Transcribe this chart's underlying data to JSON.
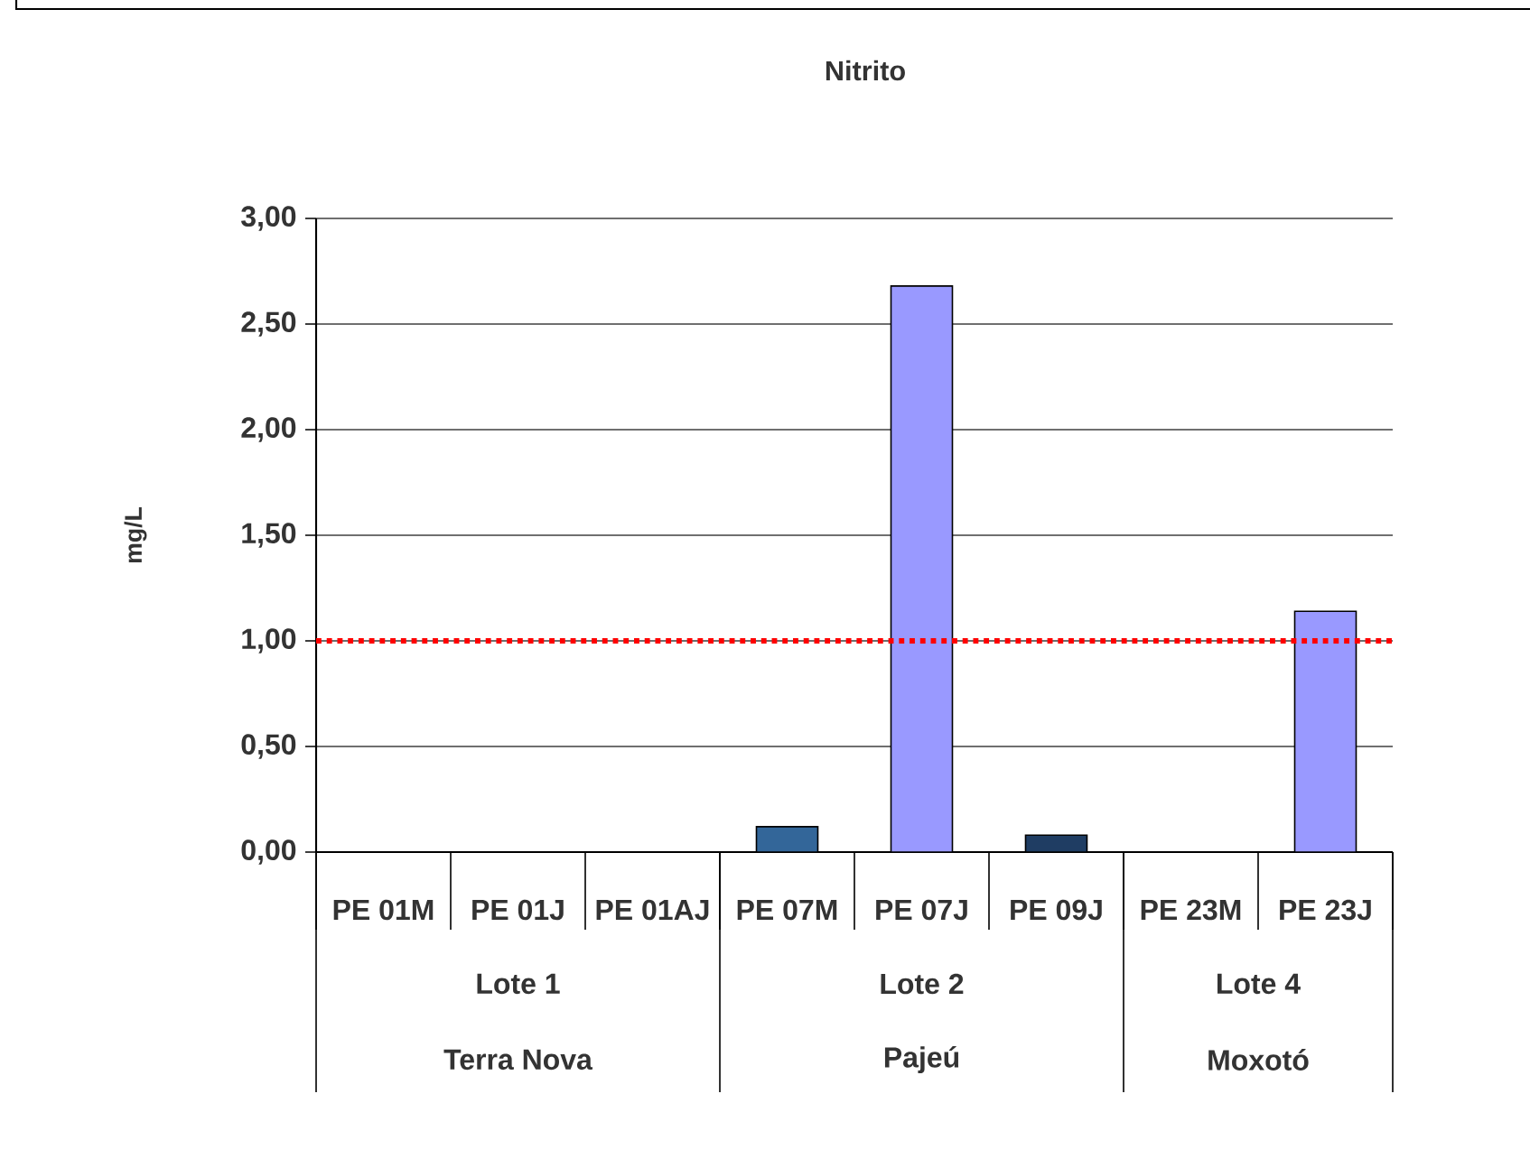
{
  "chart_data": {
    "type": "bar",
    "title": "Nitrito",
    "ylabel": "mg/L",
    "categories": [
      "PE 01M",
      "PE 01J",
      "PE 01AJ",
      "PE 07M",
      "PE 07J",
      "PE 09J",
      "PE 23M",
      "PE 23J"
    ],
    "values": [
      0,
      0,
      0,
      0.12,
      2.68,
      0.08,
      0,
      1.14
    ],
    "colors": [
      "#2b4b78",
      "#8080d8",
      "#8080d8",
      "#336699",
      "#9999ff",
      "#1f3d63",
      "#2f5580",
      "#9999ff"
    ],
    "ylim": [
      0,
      3
    ],
    "yticks": [
      {
        "value": 0,
        "label": "0,00"
      },
      {
        "value": 0.5,
        "label": "0,50"
      },
      {
        "value": 1,
        "label": "1,00"
      },
      {
        "value": 1.5,
        "label": "1,50"
      },
      {
        "value": 2,
        "label": "2,00"
      },
      {
        "value": 2.5,
        "label": "2,50"
      },
      {
        "value": 3,
        "label": "3,00"
      }
    ],
    "grid": "y",
    "ref_lines": [
      {
        "axis": "y",
        "value": 1,
        "color": "#ff0000",
        "line_style": "dotted"
      }
    ],
    "annotations": [
      "Lote 1",
      "Lote 2",
      "Lote 4",
      "Terra Nova",
      "Pajeú",
      "Moxotó"
    ]
  }
}
